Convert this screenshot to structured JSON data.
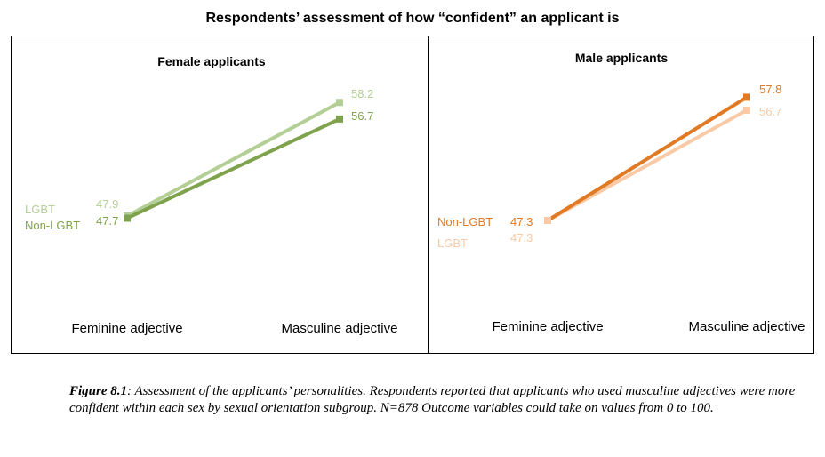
{
  "title": "Respondents’ assessment of how “confident” an applicant is",
  "caption": {
    "label": "Figure 8.1",
    "text": ": Assessment of the applicants’ personalities. Respondents reported that applicants who used masculine adjectives were more confident within each sex by sexual orientation subgroup. N=878 Outcome variables could take on values from 0 to 100."
  },
  "chart_data": [
    {
      "type": "line",
      "title": "Female applicants",
      "categories": [
        "Feminine adjective",
        "Masculine adjective"
      ],
      "series": [
        {
          "name": "LGBT",
          "values": [
            47.9,
            58.2
          ],
          "color": "#b3cf95"
        },
        {
          "name": "Non-LGBT",
          "values": [
            47.7,
            56.7
          ],
          "color": "#7fa24d"
        }
      ]
    },
    {
      "type": "line",
      "title": "Male applicants",
      "categories": [
        "Feminine adjective",
        "Masculine adjective"
      ],
      "series": [
        {
          "name": "Non-LGBT",
          "values": [
            47.3,
            57.8
          ],
          "color": "#e07a24"
        },
        {
          "name": "LGBT",
          "values": [
            47.3,
            56.7
          ],
          "color": "#f9caa5"
        }
      ]
    }
  ]
}
